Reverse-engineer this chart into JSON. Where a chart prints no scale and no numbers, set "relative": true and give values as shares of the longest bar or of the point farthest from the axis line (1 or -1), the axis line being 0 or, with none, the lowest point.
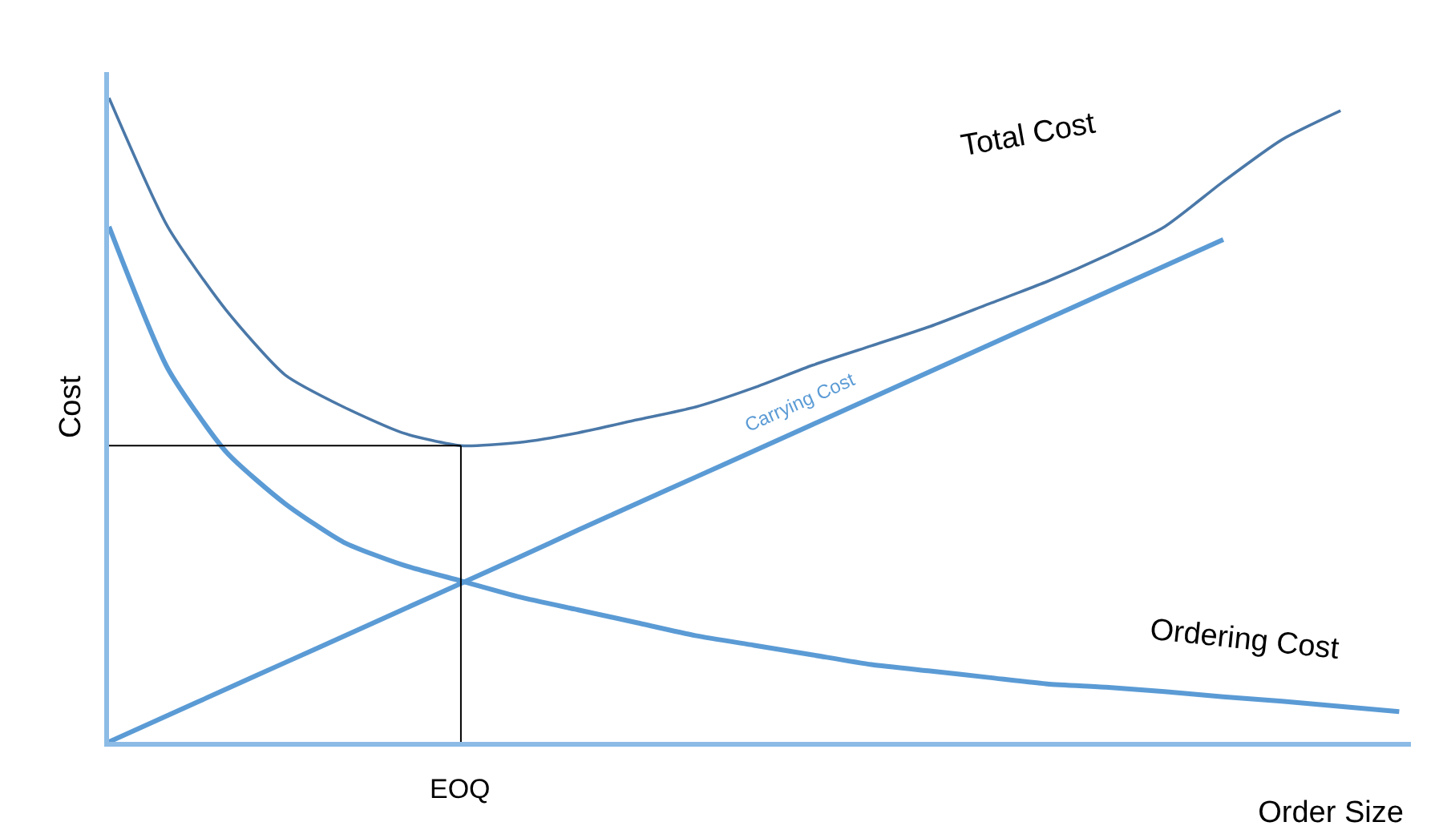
{
  "chart_data": {
    "type": "line",
    "relative": true,
    "xlabel": "Order Size",
    "ylabel": "Cost",
    "categories": [
      null,
      null,
      null,
      null,
      null,
      null,
      null,
      null,
      null,
      null,
      null,
      null,
      null,
      null,
      null,
      null,
      null,
      null,
      null,
      null,
      null,
      null,
      null
    ],
    "series": [
      {
        "name": "Total Cost",
        "color": "#4a78a8",
        "values": [
          1,
          0.8,
          0.67,
          0.57,
          0.52,
          0.48,
          0.46,
          0.465,
          0.48,
          0.5,
          0.52,
          0.55,
          0.585,
          0.615,
          0.645,
          0.68,
          0.715,
          0.755,
          0.8,
          0.87,
          0.935,
          0.98,
          null
        ]
      },
      {
        "name": "Carrying Cost",
        "color": "#5b9bd5",
        "values": [
          0,
          0.041,
          0.082,
          0.123,
          0.164,
          0.205,
          0.246,
          0.287,
          0.329,
          0.37,
          0.411,
          0.452,
          0.493,
          0.534,
          0.575,
          0.616,
          0.657,
          0.698,
          0.739,
          0.78,
          null,
          null,
          null
        ]
      },
      {
        "name": "Ordering Cost",
        "color": "#5b9bd5",
        "values": [
          0.8,
          0.58,
          0.45,
          0.37,
          0.31,
          0.275,
          0.25,
          0.225,
          0.205,
          0.185,
          0.165,
          0.15,
          0.135,
          0.12,
          0.11,
          0.1,
          0.09,
          0.085,
          0.078,
          0.07,
          0.063,
          0.055,
          0.047
        ]
      }
    ],
    "ref_lines": [
      {
        "axis": "y",
        "value": 0.46,
        "color": "#000000"
      }
    ],
    "annotations": [
      "EOQ"
    ],
    "legend": false,
    "marker": "none",
    "line_style": "solid"
  }
}
